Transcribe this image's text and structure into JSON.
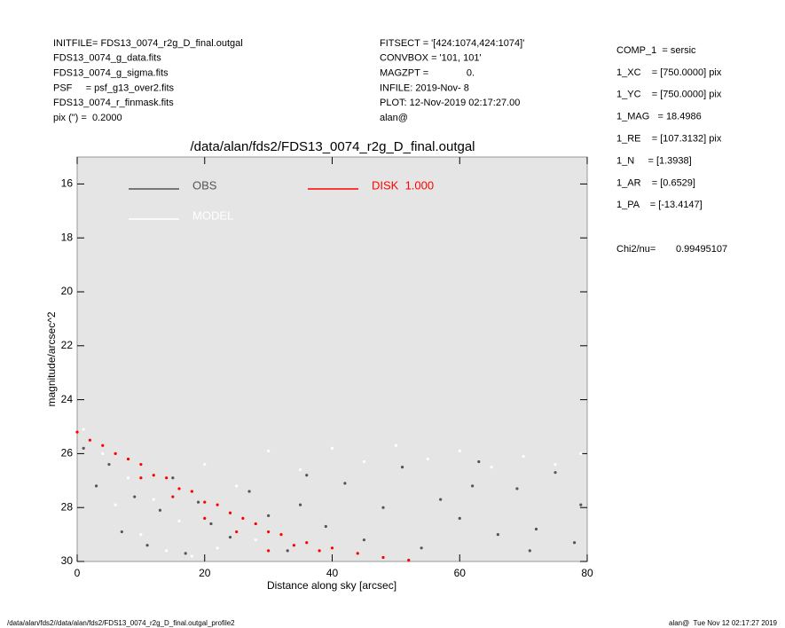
{
  "header": {
    "left": [
      "INITFILE= FDS13_0074_r2g_D_final.outgal",
      "FDS13_0074_g_data.fits",
      "FDS13_0074_g_sigma.fits",
      "PSF     = psf_g13_over2.fits",
      "FDS13_0074_r_finmask.fits",
      "pix (\") =  0.2000"
    ],
    "middle": [
      "FITSECT = '[424:1074,424:1074]'",
      "CONVBOX = '101, 101'",
      "MAGZPT =              0.",
      "INFILE: 2019-Nov- 8",
      "PLOT: 12-Nov-2019 02:17:27.00",
      "alan@"
    ],
    "right": [
      "COMP_1  = sersic",
      "1_XC    = [750.0000] pix",
      "1_YC    = [750.0000] pix",
      "1_MAG   = 18.4986",
      "1_RE    = [107.3132] pix",
      "1_N     = [1.3938]",
      "1_AR    = [0.6529]",
      "1_PA    = [-13.4147]"
    ],
    "chi2_label": "Chi2/nu=",
    "chi2_value": "0.99495107"
  },
  "chart_data": {
    "type": "scatter",
    "title": "/data/alan/fds2/FDS13_0074_r2g_D_final.outgal",
    "x_label": "Distance along sky [arcsec]",
    "y_label": "magnitude/arcsec^2",
    "xlim": [
      0,
      80
    ],
    "ylim": [
      30,
      15
    ],
    "xticks": [
      0,
      20,
      40,
      60,
      80
    ],
    "yticks": [
      16,
      18,
      20,
      22,
      24,
      26,
      28,
      30
    ],
    "series": [
      {
        "name": "OBS",
        "color": "#555555",
        "x": [
          1,
          3,
          5,
          7,
          9,
          11,
          13,
          15,
          17,
          19,
          21,
          24,
          27,
          30,
          33,
          36,
          39,
          42,
          45,
          48,
          51,
          54,
          57,
          60,
          63,
          66,
          69,
          72,
          75,
          78,
          79,
          35,
          62,
          71
        ],
        "values": [
          25.8,
          27.2,
          26.4,
          28.9,
          27.6,
          29.4,
          28.1,
          26.9,
          29.7,
          27.8,
          28.6,
          29.1,
          27.4,
          28.3,
          29.6,
          26.8,
          28.7,
          27.1,
          29.2,
          28.0,
          26.5,
          29.5,
          27.7,
          28.4,
          26.3,
          29.0,
          27.3,
          28.8,
          26.7,
          29.3,
          27.9,
          27.9,
          27.2,
          29.6
        ]
      },
      {
        "name": "MODEL",
        "color": "#ffffff",
        "x": [
          1,
          4,
          8,
          12,
          16,
          20,
          25,
          30,
          35,
          40,
          45,
          50,
          55,
          60,
          65,
          70,
          75,
          79,
          22,
          10,
          18,
          28,
          6,
          14
        ],
        "values": [
          25.1,
          26.0,
          26.9,
          27.7,
          28.5,
          26.4,
          27.2,
          25.9,
          26.6,
          25.8,
          26.3,
          25.7,
          26.2,
          25.9,
          26.5,
          26.1,
          26.4,
          26.0,
          29.5,
          29.0,
          29.8,
          29.2,
          27.9,
          29.6
        ]
      },
      {
        "name": "DISK  1.000",
        "color": "#ff0000",
        "x": [
          0,
          2,
          4,
          6,
          8,
          10,
          12,
          14,
          16,
          18,
          20,
          22,
          24,
          26,
          28,
          30,
          32,
          34,
          36,
          38,
          40,
          44,
          48,
          52,
          10,
          20,
          30,
          15,
          25
        ],
        "values": [
          25.2,
          25.5,
          25.7,
          26.0,
          26.2,
          26.4,
          26.8,
          26.9,
          27.3,
          27.4,
          27.8,
          27.9,
          28.2,
          28.4,
          28.6,
          28.9,
          29.0,
          29.4,
          29.3,
          29.6,
          29.5,
          29.7,
          29.85,
          29.95,
          26.9,
          28.4,
          29.6,
          27.6,
          28.9
        ]
      }
    ]
  },
  "footer": {
    "left": "/data/alan/fds2//data/alan/fds2/FDS13_0074_r2g_D_final.outgal_profile2",
    "right": "alan@  Tue Nov 12 02:17:27 2019"
  }
}
